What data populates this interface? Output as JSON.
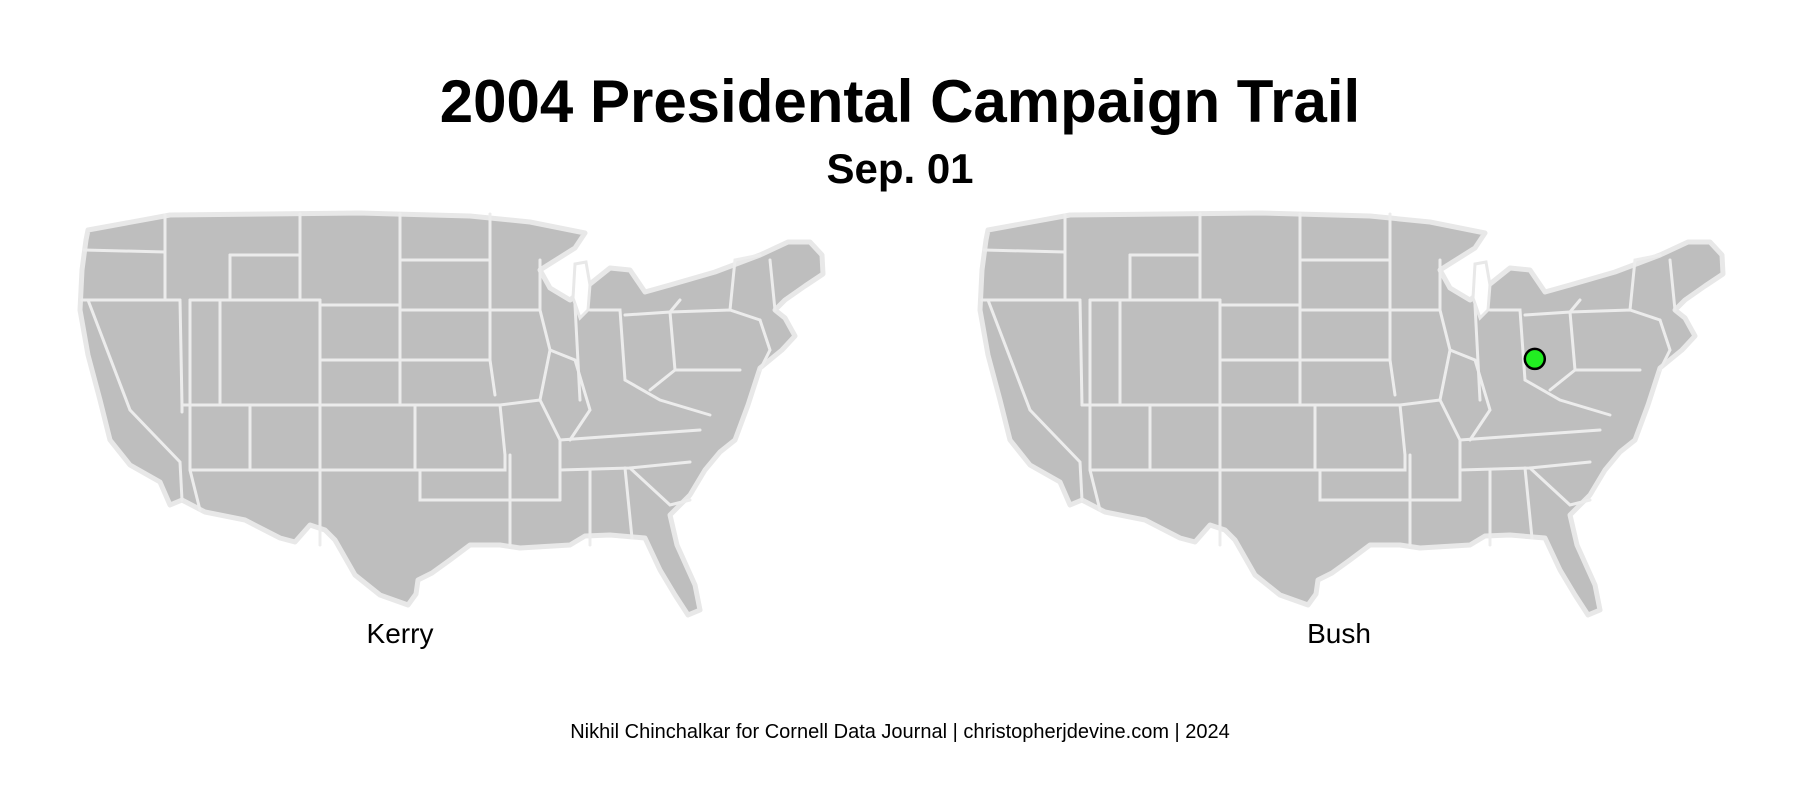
{
  "title": "2004 Presidental Campaign Trail",
  "subtitle": "Sep. 01",
  "caption": "Nikhil  Chinchalkar  for Cornell  Data Journal | christopherjdevine.com | 2024",
  "panels": [
    {
      "label": "Kerry",
      "stops": []
    },
    {
      "label": "Bush",
      "stops": [
        {
          "lon": -81.6,
          "lat": 40.4
        }
      ]
    }
  ],
  "colors": {
    "land": "#bebebe",
    "border": "#e8e8e8",
    "stop_fill": "#22ee22",
    "stop_outline": "#000000"
  }
}
